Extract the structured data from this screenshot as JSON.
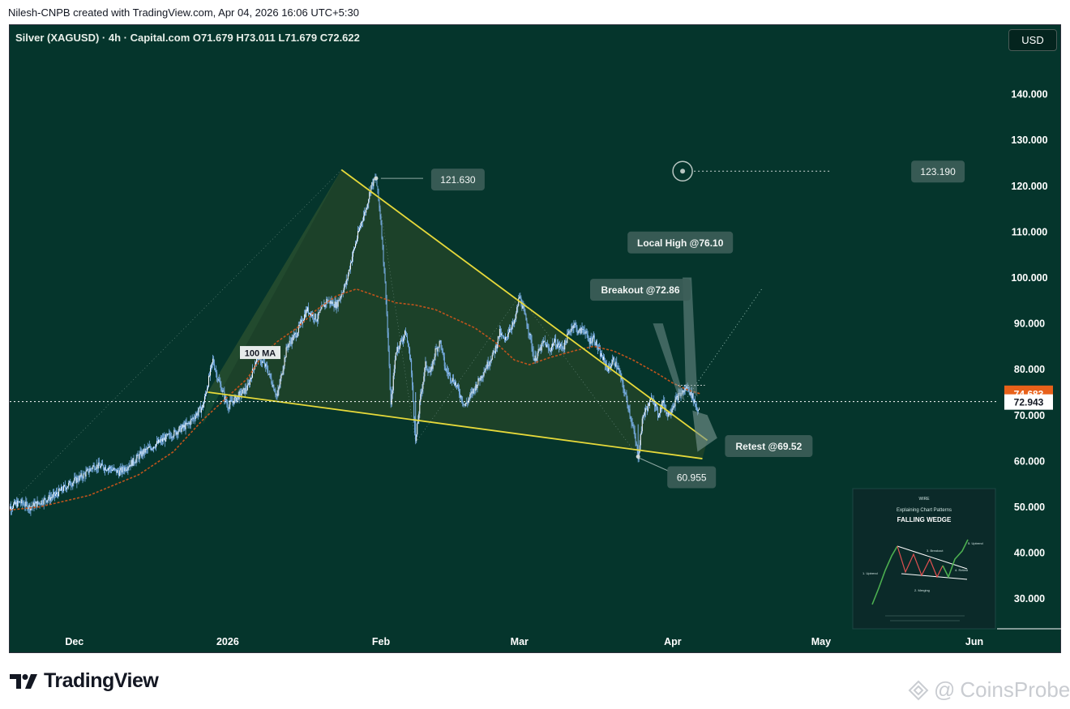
{
  "header": {
    "author_line": "Nilesh-CNPB created with TradingView.com, Apr 04, 2026 16:06 UTC+5:30",
    "symbol_line": "Silver (XAGUSD) · 4h · Capital.com  O71.679  H73.011  L71.679  C72.622"
  },
  "currency_button": "USD",
  "footer": {
    "brand": "TradingView",
    "watermark": "CoinsProbe"
  },
  "colors": {
    "background": "#05352c",
    "candle": "#7ab0e8",
    "wedge_line": "#e6d93a",
    "moving_average": "#c0541c",
    "wedge_fill": "#2f4a28",
    "label_bg": "#3c5d58",
    "current_price_tag": "#ffffff",
    "ma_price_tag": "#e8611a"
  },
  "chart_data": {
    "type": "candlestick",
    "instrument": "Silver (XAGUSD)",
    "timeframe": "4h",
    "source": "Capital.com",
    "ohlc": {
      "open": 71.679,
      "high": 73.011,
      "low": 71.679,
      "close": 72.622
    },
    "y_axis": {
      "ticks": [
        "140.000",
        "130.000",
        "120.000",
        "110.000",
        "100.000",
        "90.000",
        "80.000",
        "70.000",
        "60.000",
        "50.000",
        "40.000",
        "30.000"
      ],
      "tick_values": [
        140,
        130,
        120,
        110,
        100,
        90,
        80,
        70,
        60,
        50,
        40,
        30
      ]
    },
    "x_axis": {
      "ticks": [
        "Dec",
        "2026",
        "Feb",
        "Mar",
        "Apr",
        "May",
        "Jun"
      ],
      "tick_days": [
        7,
        38,
        69,
        97,
        128,
        158,
        189
      ]
    },
    "current_price": {
      "label": "72.943",
      "value": 72.943
    },
    "ma_price": {
      "label": "74.683",
      "value": 74.683
    },
    "price_path": [
      [
        -7,
        49.5
      ],
      [
        -4,
        51
      ],
      [
        -2,
        50
      ],
      [
        0,
        51
      ],
      [
        3,
        52.5
      ],
      [
        6,
        55
      ],
      [
        9,
        57
      ],
      [
        11,
        59
      ],
      [
        14,
        58.5
      ],
      [
        16,
        57.5
      ],
      [
        19,
        60
      ],
      [
        21,
        62
      ],
      [
        24,
        64
      ],
      [
        27,
        66
      ],
      [
        30,
        68
      ],
      [
        33,
        72
      ],
      [
        35,
        82
      ],
      [
        36,
        78
      ],
      [
        38,
        72
      ],
      [
        40,
        74
      ],
      [
        42,
        76
      ],
      [
        44,
        83
      ],
      [
        46,
        80
      ],
      [
        48,
        74
      ],
      [
        50,
        85
      ],
      [
        52,
        88
      ],
      [
        54,
        93
      ],
      [
        56,
        91
      ],
      [
        58,
        95
      ],
      [
        60,
        94
      ],
      [
        62,
        99
      ],
      [
        63,
        104
      ],
      [
        65,
        112
      ],
      [
        66,
        115
      ],
      [
        67,
        120
      ],
      [
        68,
        121.63
      ],
      [
        69,
        112
      ],
      [
        70,
        96
      ],
      [
        71,
        72
      ],
      [
        72,
        84
      ],
      [
        73,
        86
      ],
      [
        74,
        88
      ],
      [
        75,
        82
      ],
      [
        76,
        64
      ],
      [
        77,
        74
      ],
      [
        78,
        81
      ],
      [
        79,
        79
      ],
      [
        80,
        84
      ],
      [
        81,
        86
      ],
      [
        82,
        80
      ],
      [
        84,
        77
      ],
      [
        86,
        72
      ],
      [
        88,
        76
      ],
      [
        90,
        80
      ],
      [
        92,
        84
      ],
      [
        93,
        88
      ],
      [
        94,
        86
      ],
      [
        95,
        89
      ],
      [
        96,
        90
      ],
      [
        97,
        96
      ],
      [
        98,
        92
      ],
      [
        99,
        88
      ],
      [
        100,
        82
      ],
      [
        101,
        84
      ],
      [
        102,
        86
      ],
      [
        103,
        84
      ],
      [
        104,
        86
      ],
      [
        105,
        85
      ],
      [
        106,
        85
      ],
      [
        107,
        88
      ],
      [
        108,
        90
      ],
      [
        109,
        88
      ],
      [
        110,
        89
      ],
      [
        111,
        86
      ],
      [
        112,
        87
      ],
      [
        113,
        84
      ],
      [
        114,
        82
      ],
      [
        115,
        80
      ],
      [
        116,
        82
      ],
      [
        117,
        80
      ],
      [
        118,
        76
      ],
      [
        119,
        72
      ],
      [
        120,
        67
      ],
      [
        121,
        61
      ],
      [
        122,
        70
      ],
      [
        123,
        72
      ],
      [
        124,
        74
      ],
      [
        125,
        70
      ],
      [
        126,
        73
      ],
      [
        127,
        70
      ],
      [
        128,
        72
      ],
      [
        129,
        74
      ],
      [
        130,
        75
      ],
      [
        131,
        76.1
      ],
      [
        132,
        74
      ],
      [
        133,
        71
      ],
      [
        133.5,
        72.62
      ]
    ],
    "moving_average": {
      "label": "100 MA",
      "points": [
        [
          -7,
          49.2
        ],
        [
          0,
          50
        ],
        [
          10,
          52.5
        ],
        [
          20,
          57
        ],
        [
          27,
          62
        ],
        [
          33,
          69
        ],
        [
          38,
          74
        ],
        [
          42,
          78
        ],
        [
          45,
          83
        ],
        [
          48,
          86
        ],
        [
          52,
          89
        ],
        [
          56,
          93
        ],
        [
          60,
          96
        ],
        [
          64,
          97.5
        ],
        [
          68,
          96
        ],
        [
          72,
          94.5
        ],
        [
          76,
          94
        ],
        [
          80,
          93
        ],
        [
          84,
          91
        ],
        [
          88,
          89
        ],
        [
          92,
          86
        ],
        [
          96,
          82
        ],
        [
          99,
          81
        ],
        [
          103,
          82.5
        ],
        [
          108,
          84
        ],
        [
          112,
          85
        ],
        [
          116,
          84
        ],
        [
          120,
          82
        ],
        [
          125,
          79
        ],
        [
          128,
          77
        ],
        [
          131,
          75.5
        ],
        [
          133.5,
          74.683
        ]
      ]
    },
    "wedge": {
      "upper_line": [
        [
          61,
          123.5
        ],
        [
          135,
          64.5
        ]
      ],
      "lower_line": [
        [
          34,
          75
        ],
        [
          134,
          60.5
        ]
      ],
      "fill_polygon": [
        [
          34,
          75
        ],
        [
          61,
          123.5
        ],
        [
          135,
          64.5
        ],
        [
          134,
          60.5
        ]
      ]
    },
    "projection": {
      "from": [
        131,
        74
      ],
      "to": [
        146,
        97.5
      ]
    },
    "target_line": {
      "from": [
        130,
        123.19
      ],
      "to": [
        160,
        123.19
      ]
    },
    "annotations": [
      {
        "text": "121.630",
        "day": 68,
        "price": 121.63
      },
      {
        "text": "60.955",
        "day": 121,
        "price": 60.955
      },
      {
        "text": "123.190",
        "day": 130,
        "price": 123.19
      },
      {
        "text": "Local High @76.10",
        "day": 131,
        "price": 76.1
      },
      {
        "text": "Breakout @72.86",
        "day": 129,
        "price": 72.86
      },
      {
        "text": "Retest @69.52",
        "day": 133,
        "price": 69.52
      },
      {
        "text": "100 MA",
        "day": 49,
        "price": 84
      }
    ],
    "inset": {
      "brand": "WIRE",
      "subtitle": "Explaining Chart Patterns",
      "title": "FALLING WEDGE",
      "step_labels": [
        "1. Uptrend",
        "2. Merging",
        "3. Breakout",
        "4. Retest",
        "5. Uptrend"
      ]
    }
  }
}
